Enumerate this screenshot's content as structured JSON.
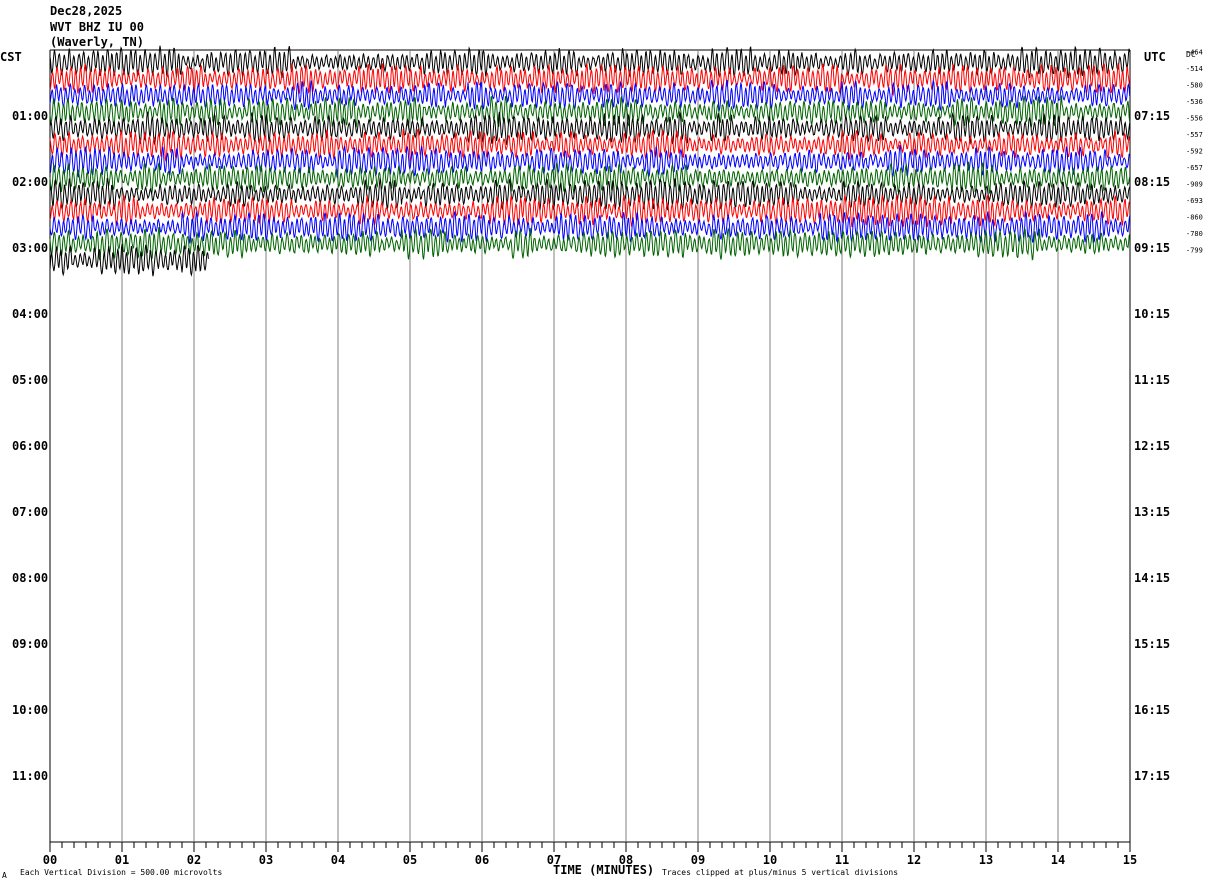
{
  "header": {
    "date": "Dec28,2025",
    "station": "WVT BHZ IU 00",
    "location": "(Waverly, TN)"
  },
  "left_label": "CST",
  "right_label": "UTC",
  "dc_label": "DC",
  "footer": {
    "scale_note": "Each Vertical Division =  500.00 microvolts",
    "axis_title": "TIME (MINUTES)",
    "clip_note": "Traces clipped at plus/minus 5 vertical divisions",
    "corner_mark": "A"
  },
  "colors": {
    "trace_cycle": [
      "#000000",
      "#ff0000",
      "#0000ff",
      "#006400"
    ],
    "grid": "#808080"
  },
  "chart_data": {
    "type": "line",
    "title": "",
    "xlabel": "TIME (MINUTES)",
    "ylabel": "",
    "x_range": [
      0,
      15
    ],
    "x_ticks": [
      "00",
      "01",
      "02",
      "03",
      "04",
      "05",
      "06",
      "07",
      "08",
      "09",
      "10",
      "11",
      "12",
      "13",
      "14",
      "15"
    ],
    "row_minutes": 15,
    "rows_total": 48,
    "local_hour_labels": [
      "01:00",
      "02:00",
      "03:00",
      "04:00",
      "05:00",
      "06:00",
      "07:00",
      "08:00",
      "09:00",
      "10:00",
      "11:00"
    ],
    "utc_hour_labels": [
      "07:15",
      "08:15",
      "09:15",
      "10:15",
      "11:15",
      "12:15",
      "13:15",
      "14:15",
      "15:15",
      "16:15",
      "17:15"
    ],
    "vertical_division_microvolts": 500.0,
    "traces": [
      {
        "dc": "-464",
        "minutes": 15
      },
      {
        "dc": "-514",
        "minutes": 15
      },
      {
        "dc": "-580",
        "minutes": 15
      },
      {
        "dc": "-536",
        "minutes": 15
      },
      {
        "dc": "-556",
        "minutes": 15
      },
      {
        "dc": "-557",
        "minutes": 15
      },
      {
        "dc": "-592",
        "minutes": 15
      },
      {
        "dc": "-657",
        "minutes": 15
      },
      {
        "dc": "-909",
        "minutes": 15
      },
      {
        "dc": "-693",
        "minutes": 15
      },
      {
        "dc": "-860",
        "minutes": 15
      },
      {
        "dc": "-780",
        "minutes": 15
      },
      {
        "dc": "-799",
        "minutes": 2.2
      }
    ]
  }
}
